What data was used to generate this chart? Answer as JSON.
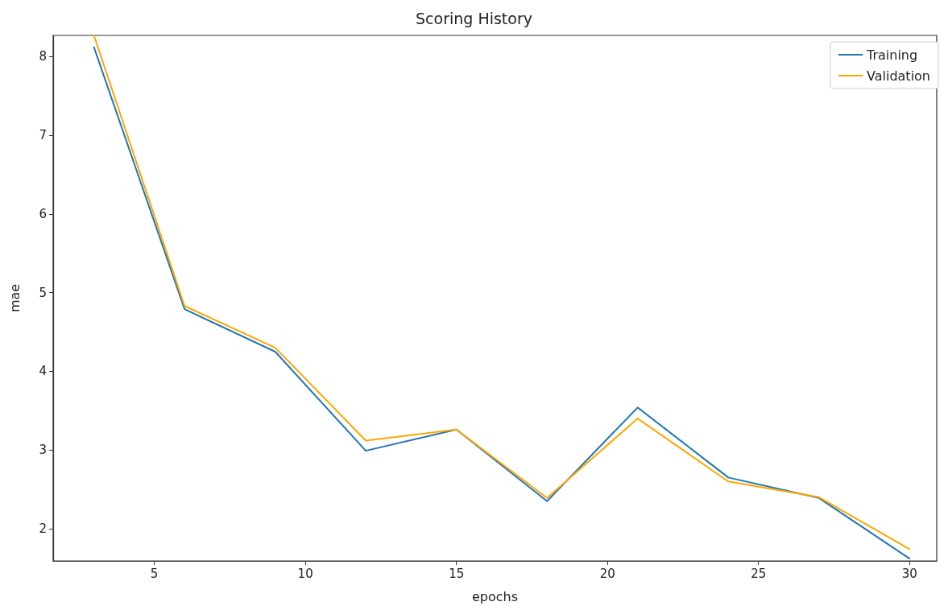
{
  "chart_data": {
    "type": "line",
    "title": "Scoring History",
    "xlabel": "epochs",
    "ylabel": "mae",
    "x": [
      3,
      6,
      9,
      12,
      15,
      18,
      21,
      24,
      27,
      30
    ],
    "series": [
      {
        "name": "Training",
        "color": "#1f77b4",
        "values": [
          8.12,
          4.79,
          4.25,
          2.99,
          3.26,
          2.35,
          3.54,
          2.65,
          2.39,
          1.62
        ]
      },
      {
        "name": "Validation",
        "color": "#ffa500",
        "values": [
          8.27,
          4.83,
          4.3,
          3.12,
          3.26,
          2.39,
          3.4,
          2.6,
          2.4,
          1.74
        ]
      }
    ],
    "xlim": [
      1.65,
      30.9
    ],
    "xticks": [
      5,
      10,
      15,
      20,
      25,
      30
    ],
    "ylim": [
      1.59,
      8.27
    ],
    "yticks": [
      2,
      3,
      4,
      5,
      6,
      7,
      8
    ],
    "grid": false,
    "legend": "top right",
    "marker": "none",
    "line_style": "solid"
  }
}
